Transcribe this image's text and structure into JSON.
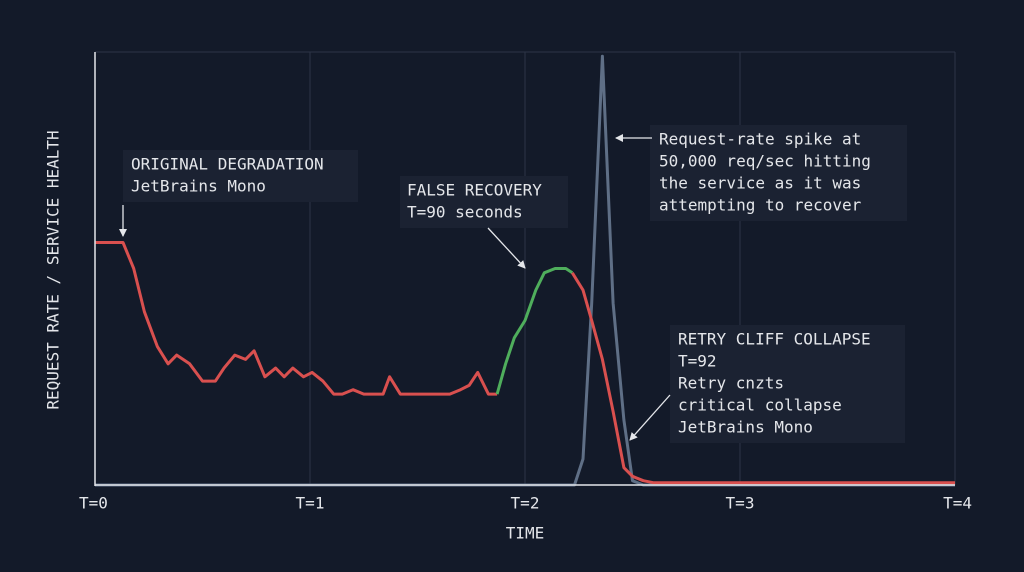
{
  "chart_data": {
    "type": "line",
    "x_label": "TIME",
    "y_label": "REQUEST RATE / SERVICE HEALTH",
    "xlim": [
      0,
      4
    ],
    "ylim": [
      0,
      100
    ],
    "xticks": [
      {
        "value": 0,
        "label": "T=0"
      },
      {
        "value": 1,
        "label": "T=1"
      },
      {
        "value": 2,
        "label": "T=2"
      },
      {
        "value": 3,
        "label": "T=3"
      },
      {
        "value": 4,
        "label": "T=4"
      }
    ],
    "grid": true,
    "series": [
      {
        "color": "#5f6f86",
        "x": [
          0,
          2.23,
          2.27,
          2.31,
          2.36,
          2.41,
          2.46,
          2.5,
          2.55,
          4
        ],
        "values": [
          0,
          0,
          6,
          42,
          99,
          42,
          15,
          1,
          0,
          0
        ]
      },
      {
        "color": "#d9504f",
        "x": [
          0,
          0.13,
          0.18,
          0.23,
          0.29,
          0.34,
          0.38,
          0.44,
          0.5,
          0.56,
          0.6,
          0.65,
          0.7,
          0.74,
          0.79,
          0.84,
          0.88,
          0.92,
          0.97,
          1.01,
          1.06,
          1.11,
          1.15,
          1.2,
          1.25,
          1.29,
          1.34,
          1.37,
          1.42,
          1.47,
          1.51,
          1.56,
          1.6,
          1.65,
          1.7,
          1.74,
          1.78,
          1.83,
          1.87
        ],
        "values": [
          56,
          56,
          50,
          40,
          32,
          28,
          30,
          28,
          24,
          24,
          27,
          30,
          29,
          31,
          25,
          27,
          25,
          27,
          25,
          26,
          24,
          21,
          21,
          22,
          21,
          21,
          21,
          25,
          21,
          21,
          21,
          21,
          21,
          21,
          22,
          23,
          26,
          21,
          21
        ]
      },
      {
        "color": "#4fae5c",
        "x": [
          1.87,
          1.91,
          1.95,
          2,
          2.05,
          2.09,
          2.14,
          2.19,
          2.22
        ],
        "values": [
          21,
          28,
          34,
          38,
          45,
          49,
          50,
          50,
          49
        ]
      },
      {
        "color": "#d9504f",
        "x": [
          2.22,
          2.27,
          2.31,
          2.36,
          2.41,
          2.46,
          2.5,
          2.55,
          2.6,
          4
        ],
        "values": [
          49,
          45,
          38,
          29,
          17,
          4,
          2,
          1,
          0.5,
          0.5
        ]
      }
    ],
    "annotations": [
      {
        "lines": [
          "ORIGINAL DEGRADATION",
          "JetBrains Mono"
        ]
      },
      {
        "lines": [
          "FALSE RECOVERY",
          "T=90 seconds"
        ]
      },
      {
        "lines": [
          "Request-rate spike at",
          "50,000 req/sec hitting",
          "the service as it was",
          "attempting to recover"
        ]
      },
      {
        "lines": [
          "RETRY CLIFF COLLAPSE",
          "T=92",
          "Retry cnzts",
          "critical collapse",
          "JetBrains Mono"
        ]
      }
    ]
  }
}
